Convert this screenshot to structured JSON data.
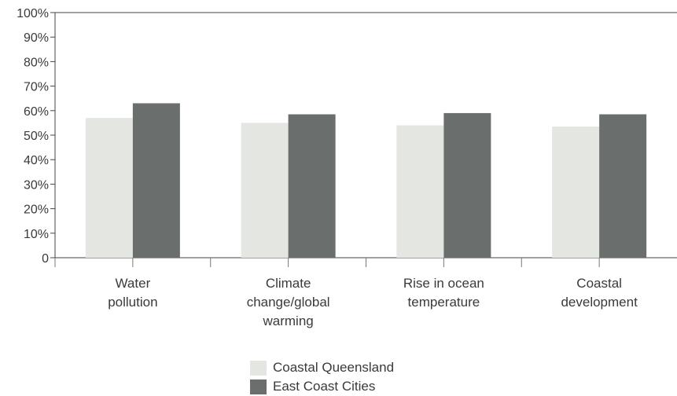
{
  "chart_data": {
    "type": "bar",
    "categories": [
      [
        "Water",
        "pollution"
      ],
      [
        "Climate",
        "change/global",
        "warming"
      ],
      [
        "Rise in ocean",
        "temperature"
      ],
      [
        "Coastal",
        "development"
      ]
    ],
    "series": [
      {
        "name": "Coastal Queensland",
        "color": "#e3e6e1",
        "values": [
          57,
          55,
          54,
          53.5
        ]
      },
      {
        "name": "East Coast Cities",
        "color": "#6a6e6c",
        "values": [
          63,
          58.5,
          59,
          58.5
        ]
      }
    ],
    "ylim": [
      0,
      100
    ],
    "yticks": [
      "0",
      "10%",
      "20%",
      "30%",
      "40%",
      "50%",
      "60%",
      "70%",
      "80%",
      "90%",
      "100%"
    ],
    "legend_position": "bottom-center",
    "grid": false
  }
}
